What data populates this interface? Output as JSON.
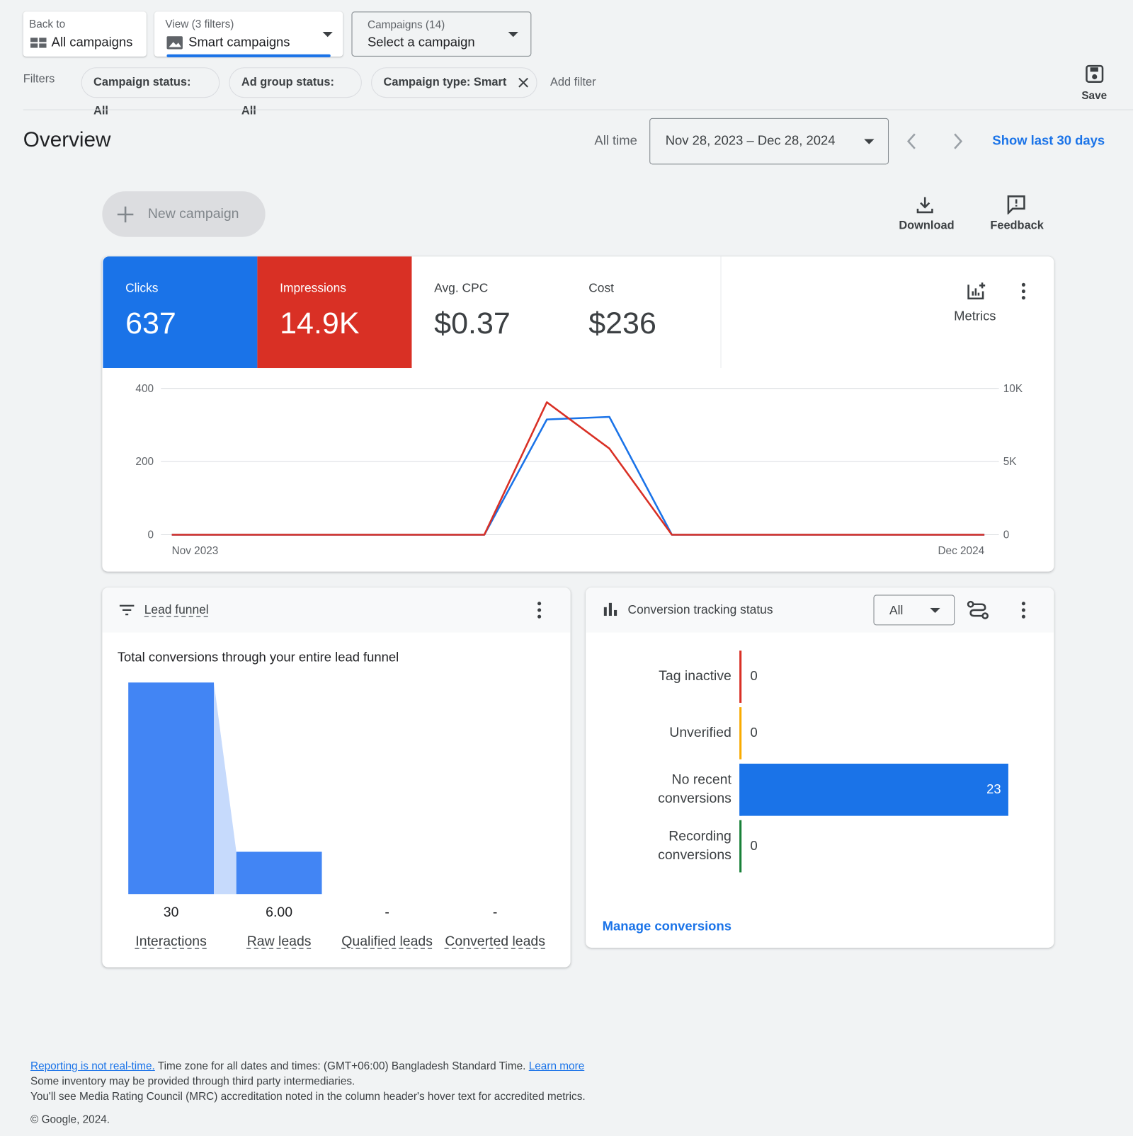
{
  "nav": {
    "back_label": "Back to",
    "back_value": "All campaigns",
    "view_label": "View (3 filters)",
    "view_value": "Smart campaigns",
    "campaigns_label": "Campaigns (14)",
    "campaigns_value": "Select a campaign"
  },
  "filters": {
    "label": "Filters",
    "chips": [
      "Campaign status: All",
      "Ad group status: All",
      "Campaign type: Smart"
    ],
    "add": "Add filter",
    "save": "Save"
  },
  "overview": {
    "title": "Overview",
    "range_label": "All time",
    "date_range": "Nov 28, 2023 – Dec 28, 2024",
    "show_last": "Show last 30 days",
    "new_campaign": "New campaign",
    "download": "Download",
    "feedback": "Feedback",
    "metrics": "Metrics"
  },
  "scorecards": [
    {
      "value": "637"
    },
    {
      "value": "14.9K"
    },
    {
      "label": "Avg. CPC",
      "value": "$0.37"
    },
    {
      "label": "Cost",
      "value": "$236"
    }
  ],
  "chart_data": [
    {
      "type": "line",
      "categories": [
        "Nov 2023",
        null,
        null,
        null,
        null,
        null,
        null,
        null,
        null,
        null,
        null,
        null,
        null,
        "Dec 2024"
      ],
      "series": [
        {
          "name": "Clicks",
          "color": "#1a73e8",
          "values": [
            0,
            0,
            0,
            0,
            0,
            0,
            315,
            322,
            0,
            0,
            0,
            0,
            0,
            0
          ]
        },
        {
          "name": "Impressions",
          "color": "#d93025",
          "axis": "y2",
          "values": [
            0,
            0,
            0,
            0,
            0,
            0,
            9050,
            5890,
            0,
            0,
            0,
            0,
            0,
            0
          ]
        }
      ],
      "ylim": [
        0,
        400
      ],
      "yticks": [
        0,
        200,
        400
      ],
      "y2lim": [
        0,
        10000
      ],
      "y2ticks": [
        0,
        {
          "value": 5000,
          "label": "5K"
        },
        {
          "value": 10000,
          "label": "10K"
        }
      ],
      "grid": true
    },
    {
      "type": "funnel",
      "title": "Lead funnel",
      "subtitle": "Total conversions through your entire lead funnel",
      "categories": [
        "Interactions",
        "Raw leads",
        "Qualified leads",
        "Converted leads"
      ],
      "values": [
        30,
        6,
        null,
        null
      ],
      "value_labels": [
        "30",
        "6.00",
        "-",
        "-"
      ],
      "color": "#4285f4",
      "connector_color": "#c6dafc"
    },
    {
      "type": "hbar",
      "title": "Conversion tracking status",
      "filter": "All",
      "link": "Manage conversions",
      "categories": [
        "Tag inactive",
        "Unverified",
        "No recent conversions",
        "Recording conversions"
      ],
      "values": [
        0,
        0,
        23,
        0
      ],
      "color": "#1a73e8",
      "category_colors": [
        "#d93025",
        "#f9ab00",
        "#1a73e8",
        "#188038"
      ]
    }
  ],
  "footer": {
    "notice_link": "Reporting is not real-time.",
    "timezone": "Time zone for all dates and times: (GMT+06:00) Bangladesh Standard Time.",
    "learn_more": "Learn more",
    "inventory": "Some inventory may be provided through third party intermediaries.",
    "mrc": "You'll see Media Rating Council (MRC) accreditation noted in the column header's hover text for accredited metrics.",
    "copyright": "© Google, 2024."
  }
}
